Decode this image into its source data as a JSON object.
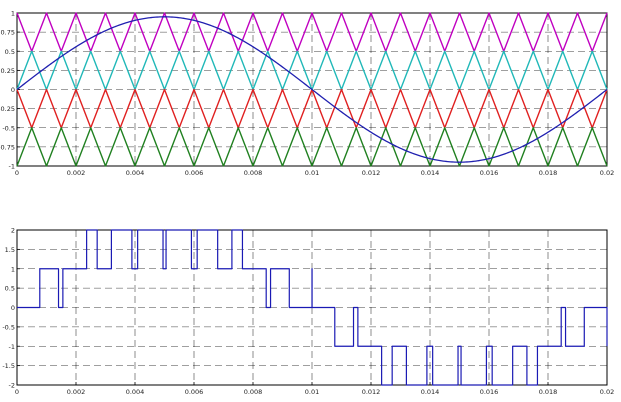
{
  "chart_data": [
    {
      "type": "line",
      "title": "",
      "xlabel": "",
      "ylabel": "",
      "xlim": [
        0,
        0.02
      ],
      "ylim": [
        -1,
        1
      ],
      "grid": true,
      "legend": "none",
      "xticks": [
        0,
        0.002,
        0.004,
        0.006,
        0.008,
        0.01,
        0.012,
        0.014,
        0.016,
        0.018,
        0.02
      ],
      "xtick_labels": [
        "0",
        "0.002",
        "0.004",
        "0.006",
        "0.008",
        "0.01",
        "0.012",
        "0.014",
        "0.016",
        "0.018",
        "0.02"
      ],
      "yticks": [
        1,
        0.75,
        0.5,
        0.25,
        0,
        -0.25,
        -0.5,
        -0.75,
        -1
      ],
      "ytick_labels": [
        "1",
        "0.75",
        "0.5",
        "0.25",
        "0",
        "-0.25",
        "-0.5",
        "-0.75",
        "-1"
      ],
      "series": [
        {
          "kind": "triangle-carrier",
          "color": "#c000c0",
          "ymin": 0.5,
          "ymax": 1,
          "periods": 20,
          "start": "high"
        },
        {
          "kind": "triangle-carrier",
          "color": "#20b8b8",
          "ymin": 0,
          "ymax": 0.5,
          "periods": 20,
          "start": "low"
        },
        {
          "kind": "triangle-carrier",
          "color": "#e02020",
          "ymin": -0.5,
          "ymax": 0,
          "periods": 20,
          "start": "high"
        },
        {
          "kind": "triangle-carrier",
          "color": "#208020",
          "ymin": -1,
          "ymax": -0.5,
          "periods": 20,
          "start": "low"
        },
        {
          "kind": "sine-reference",
          "color": "#2020b0",
          "amplitude": 0.95,
          "frequency_hz": 50
        }
      ]
    },
    {
      "type": "line",
      "title": "",
      "xlabel": "",
      "ylabel": "",
      "xlim": [
        0,
        0.02
      ],
      "ylim": [
        -2,
        2
      ],
      "grid": true,
      "legend": "none",
      "xticks": [
        0,
        0.002,
        0.004,
        0.006,
        0.008,
        0.01,
        0.012,
        0.014,
        0.016,
        0.018,
        0.02
      ],
      "xtick_labels": [
        "0",
        "0.002",
        "0.004",
        "0.006",
        "0.008",
        "0.01",
        "0.012",
        "0.014",
        "0.016",
        "0.018",
        "0.02"
      ],
      "yticks": [
        2,
        1.5,
        1,
        0.5,
        0,
        -0.5,
        -1,
        -1.5,
        -2
      ],
      "ytick_labels": [
        "2",
        "1.5",
        "1",
        "0.5",
        "0",
        "-0.5",
        "-1",
        "-1.5",
        "-2"
      ],
      "series": [
        {
          "kind": "multilevel-pwm-output",
          "color": "#1a1ab4",
          "levels": [
            -2,
            -1,
            0,
            1,
            2
          ]
        }
      ]
    }
  ]
}
